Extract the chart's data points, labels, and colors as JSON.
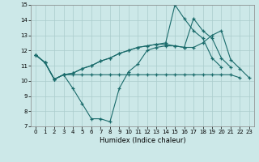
{
  "xlabel": "Humidex (Indice chaleur)",
  "bg_color": "#cce8e8",
  "grid_color": "#aacccc",
  "line_color": "#1a6b6b",
  "xlim": [
    -0.5,
    23.5
  ],
  "ylim": [
    7,
    15
  ],
  "yticks": [
    7,
    8,
    9,
    10,
    11,
    12,
    13,
    14,
    15
  ],
  "xticks": [
    0,
    1,
    2,
    3,
    4,
    5,
    6,
    7,
    8,
    9,
    10,
    11,
    12,
    13,
    14,
    15,
    16,
    17,
    18,
    19,
    20,
    21,
    22,
    23
  ],
  "series": [
    {
      "x": [
        0,
        1,
        2,
        3,
        4,
        5,
        6,
        7,
        8,
        9,
        10,
        11,
        12,
        13,
        14,
        15,
        16,
        17,
        18,
        19,
        20,
        21
      ],
      "y": [
        11.7,
        11.2,
        10.1,
        10.4,
        9.5,
        8.5,
        7.5,
        7.5,
        7.3,
        9.5,
        10.6,
        11.1,
        12.0,
        12.2,
        12.3,
        12.3,
        12.2,
        14.1,
        13.3,
        12.8,
        11.5,
        10.9
      ]
    },
    {
      "x": [
        0,
        1,
        2,
        3,
        4,
        5,
        6,
        7,
        8,
        9,
        10,
        11,
        12,
        13,
        14,
        15,
        16,
        17,
        18,
        19,
        20,
        21,
        22
      ],
      "y": [
        11.7,
        11.2,
        10.1,
        10.4,
        10.4,
        10.4,
        10.4,
        10.4,
        10.4,
        10.4,
        10.4,
        10.4,
        10.4,
        10.4,
        10.4,
        10.4,
        10.4,
        10.4,
        10.4,
        10.4,
        10.4,
        10.4,
        10.2
      ]
    },
    {
      "x": [
        0,
        1,
        2,
        3,
        4,
        5,
        6,
        7,
        8,
        9,
        10,
        11,
        12,
        13,
        14,
        15,
        16,
        17,
        18,
        19,
        20,
        21,
        22,
        23
      ],
      "y": [
        11.7,
        11.2,
        10.1,
        10.4,
        10.5,
        10.8,
        11.0,
        11.3,
        11.5,
        11.8,
        12.0,
        12.2,
        12.3,
        12.4,
        12.4,
        12.3,
        12.2,
        12.2,
        12.5,
        13.0,
        13.3,
        11.4,
        10.8,
        10.2
      ]
    },
    {
      "x": [
        0,
        1,
        2,
        3,
        4,
        5,
        6,
        7,
        8,
        9,
        10,
        11,
        12,
        13,
        14,
        15,
        16,
        17,
        18,
        19,
        20
      ],
      "y": [
        11.7,
        11.2,
        10.1,
        10.4,
        10.5,
        10.8,
        11.0,
        11.3,
        11.5,
        11.8,
        12.0,
        12.2,
        12.3,
        12.4,
        12.5,
        15.0,
        14.1,
        13.3,
        12.8,
        11.5,
        10.9
      ]
    }
  ]
}
